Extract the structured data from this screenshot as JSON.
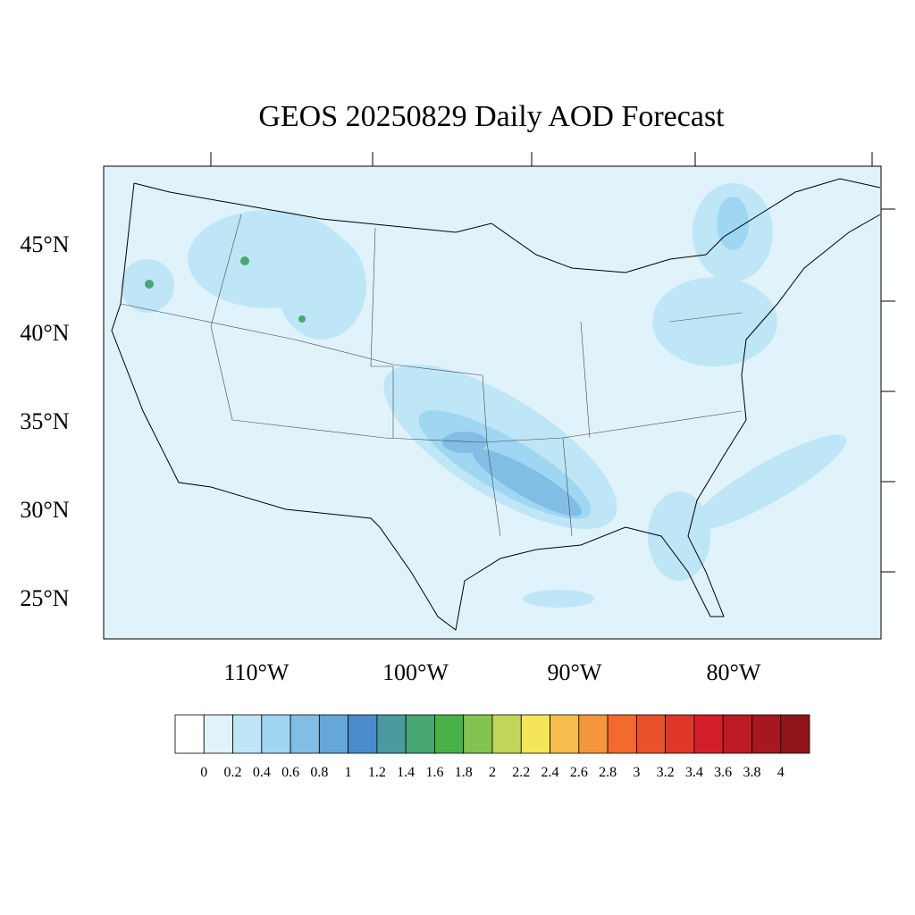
{
  "title": "GEOS 20250829 Daily AOD Forecast",
  "lat_labels": [
    "45°N",
    "40°N",
    "35°N",
    "30°N",
    "25°N"
  ],
  "lon_labels": [
    "110°W",
    "100°W",
    "90°W",
    "80°W"
  ],
  "colorbar": {
    "levels": [
      0,
      0.2,
      0.4,
      0.6,
      0.8,
      1,
      1.2,
      1.4,
      1.6,
      1.8,
      2,
      2.2,
      2.4,
      2.6,
      2.8,
      3,
      3.2,
      3.4,
      3.6,
      3.8,
      4
    ],
    "colors": [
      "#ffffff",
      "#e0f3fb",
      "#bfe6f7",
      "#9fd7f2",
      "#82bde6",
      "#66a7da",
      "#4a8ccb",
      "#4a9a9e",
      "#48a673",
      "#48b248",
      "#83c450",
      "#c2d65a",
      "#f5e55b",
      "#f6bd4c",
      "#f4963c",
      "#f26a2d",
      "#e8512b",
      "#de372a",
      "#d41f2b",
      "#bd1a24",
      "#a8171f",
      "#8f141b"
    ]
  }
}
